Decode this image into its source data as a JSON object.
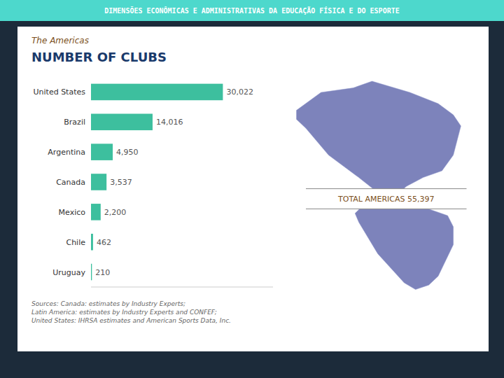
{
  "chart_data": {
    "type": "bar",
    "orientation": "horizontal",
    "title": "NUMBER OF CLUBS",
    "subtitle": "The Americas",
    "annotations": [
      "DIMENSÕES ECONÔMICAS E ADMINISTRATIVAS DA EDUCAÇÃO FÍSICA E DO ESPORTE",
      "TOTAL AMERICAS 55,397",
      "Sources: Canada: estimates by Industry Experts;\nLatin America: estimates by Industry Experts and CONFEF;\nUnited States: IHRSA estimates and American Sports Data, Inc."
    ],
    "categories": [
      "United States",
      "Brazil",
      "Argentina",
      "Canada",
      "Mexico",
      "Chile",
      "Uruguay"
    ],
    "values": [
      30022,
      14016,
      4950,
      3537,
      2200,
      462,
      210
    ],
    "value_labels": [
      "30,022",
      "14,016",
      "4,950",
      "3,537",
      "2,200",
      "462",
      "210"
    ],
    "color": "#3dbf9e",
    "xlim": [
      0,
      41430.36
    ],
    "data_labels": true,
    "tick_labels": "y",
    "grid": false
  }
}
